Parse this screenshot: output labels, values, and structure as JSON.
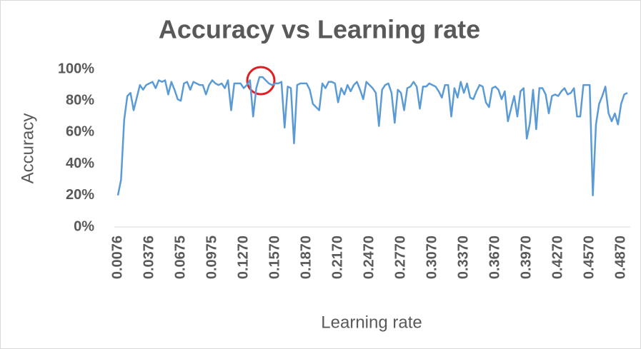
{
  "chart_data": {
    "type": "line",
    "title": "Accuracy vs Learning rate",
    "x_label": "Learning rate",
    "y_label": "Accuracy",
    "categories": [
      "0.0076",
      null,
      null,
      null,
      null,
      null,
      null,
      null,
      null,
      null,
      "0.0376",
      null,
      null,
      null,
      null,
      null,
      null,
      null,
      null,
      null,
      "0.0675",
      null,
      null,
      null,
      null,
      null,
      null,
      null,
      null,
      null,
      "0.0975",
      null,
      null,
      null,
      null,
      null,
      null,
      null,
      null,
      null,
      "0.1270",
      null,
      null,
      null,
      null,
      null,
      null,
      null,
      null,
      null,
      "0.1570",
      null,
      null,
      null,
      null,
      null,
      null,
      null,
      null,
      null,
      "0.1870",
      null,
      null,
      null,
      null,
      null,
      null,
      null,
      null,
      null,
      "0.2170",
      null,
      null,
      null,
      null,
      null,
      null,
      null,
      null,
      null,
      "0.2470",
      null,
      null,
      null,
      null,
      null,
      null,
      null,
      null,
      null,
      "0.2770",
      null,
      null,
      null,
      null,
      null,
      null,
      null,
      null,
      null,
      "0.3070",
      null,
      null,
      null,
      null,
      null,
      null,
      null,
      null,
      null,
      "0.3370",
      null,
      null,
      null,
      null,
      null,
      null,
      null,
      null,
      null,
      "0.3670",
      null,
      null,
      null,
      null,
      null,
      null,
      null,
      null,
      null,
      "0.3970",
      null,
      null,
      null,
      null,
      null,
      null,
      null,
      null,
      null,
      "0.4270",
      null,
      null,
      null,
      null,
      null,
      null,
      null,
      null,
      null,
      "0.4570",
      null,
      null,
      null,
      null,
      null,
      null,
      null,
      null,
      null,
      "0.4870",
      null,
      null
    ],
    "series": [
      {
        "name": "Accuracy",
        "color": "#5b9bd5",
        "values": [
          20,
          30,
          68,
          83,
          85,
          74,
          82,
          90,
          87,
          90,
          91,
          92,
          88,
          93,
          92,
          93,
          84,
          92,
          87,
          81,
          80,
          91,
          92,
          87,
          92,
          91,
          90,
          90,
          84,
          90,
          93,
          91,
          90,
          91,
          88,
          93,
          74,
          91,
          91,
          91,
          88,
          90,
          93,
          70,
          88,
          95,
          95,
          93,
          91,
          90,
          91,
          91,
          92,
          63,
          89,
          88,
          53,
          90,
          91,
          91,
          91,
          87,
          78,
          76,
          74,
          91,
          88,
          92,
          92,
          91,
          79,
          88,
          84,
          90,
          86,
          90,
          92,
          87,
          81,
          92,
          90,
          88,
          85,
          64,
          87,
          90,
          91,
          85,
          66,
          87,
          85,
          74,
          88,
          89,
          92,
          89,
          75,
          89,
          89,
          91,
          90,
          89,
          86,
          82,
          90,
          90,
          70,
          88,
          82,
          92,
          85,
          91,
          82,
          81,
          86,
          90,
          89,
          79,
          76,
          88,
          89,
          87,
          81,
          86,
          67,
          75,
          83,
          70,
          86,
          88,
          56,
          66,
          87,
          62,
          88,
          88,
          84,
          72,
          83,
          84,
          83,
          86,
          88,
          84,
          85,
          88,
          70,
          70,
          90,
          90,
          90,
          20,
          65,
          78,
          83,
          89,
          72,
          67,
          72,
          65,
          78,
          84,
          85
        ]
      }
    ],
    "ylim": [
      0,
      100
    ],
    "yticks": [
      {
        "value": 0,
        "label": "0%"
      },
      {
        "value": 20,
        "label": "20%"
      },
      {
        "value": 40,
        "label": "40%"
      },
      {
        "value": 60,
        "label": "60%"
      },
      {
        "value": 80,
        "label": "80%"
      },
      {
        "value": 100,
        "label": "100%"
      }
    ],
    "grid": false
  }
}
